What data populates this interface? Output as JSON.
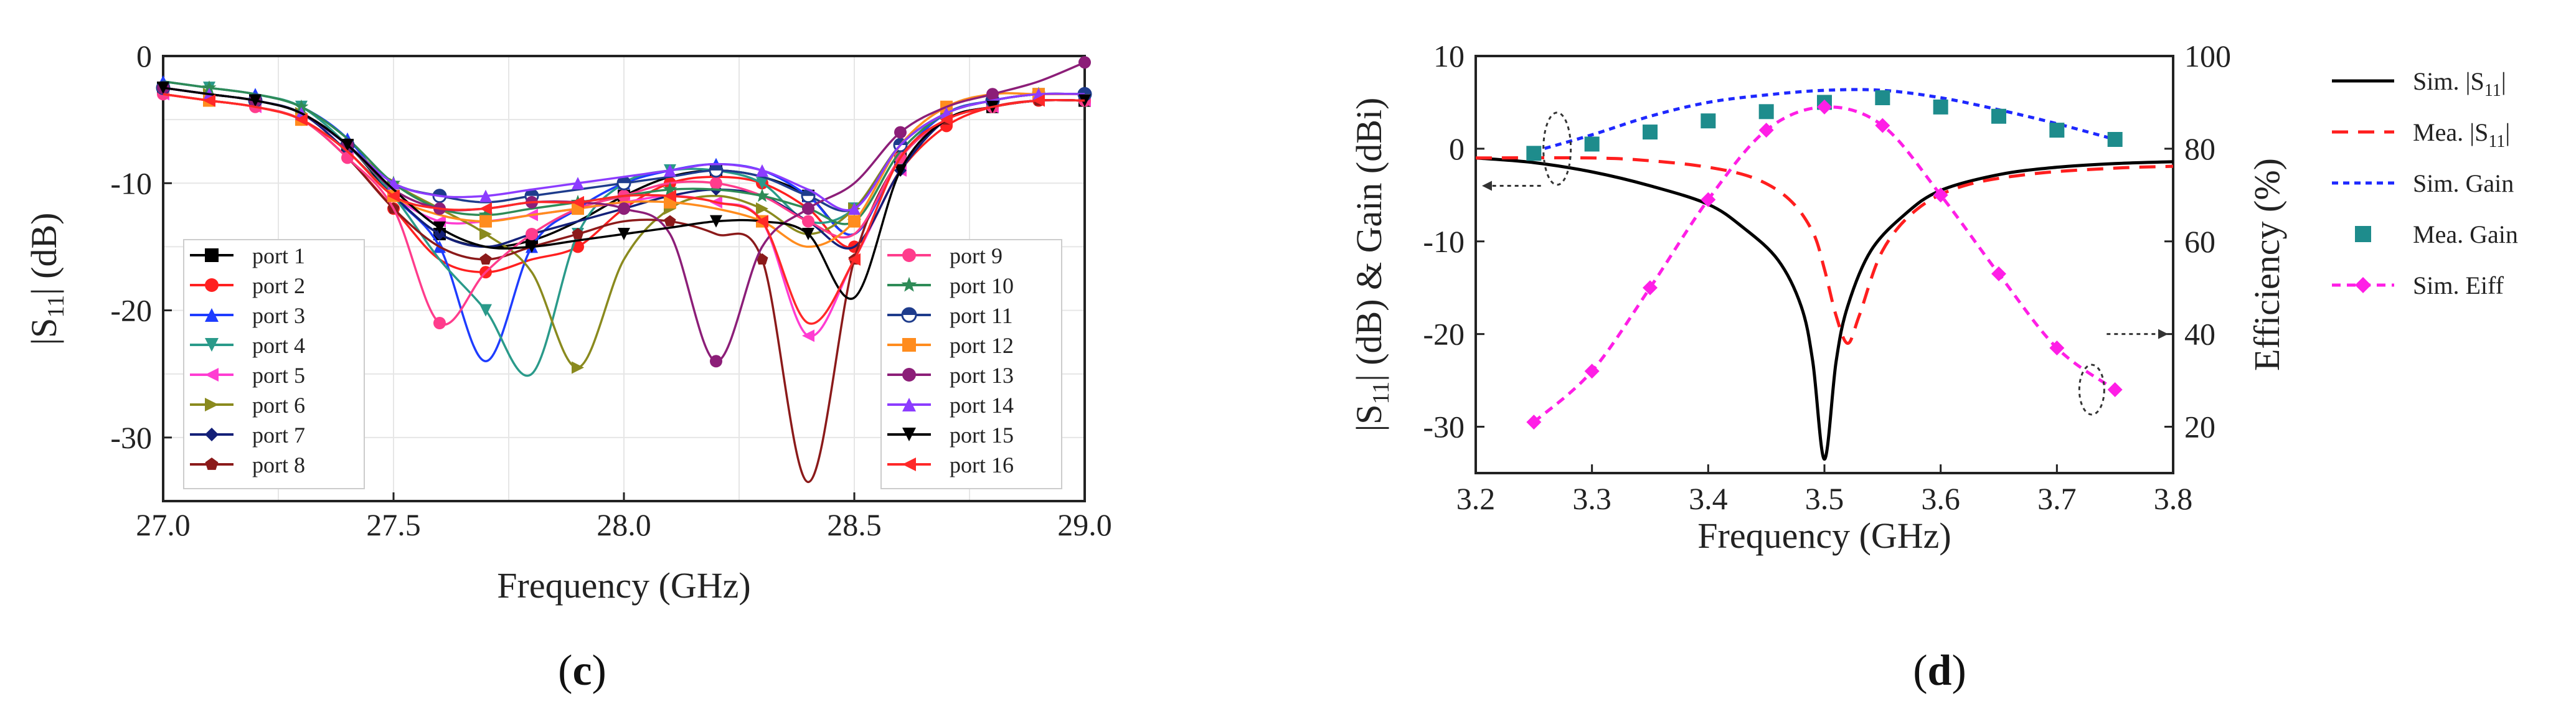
{
  "chart_data": [
    {
      "type": "line",
      "panel_label": "(c)",
      "panel_label_parts": {
        "open": "(",
        "letter": "c",
        "close": ")"
      },
      "title": "",
      "xlabel": "Frequency (GHz)",
      "ylabel": "|S11| (dB)",
      "ylabel_parts": {
        "main": "|S",
        "sub": "11",
        "tail": "| (dB)"
      },
      "xlim": [
        27.0,
        29.0
      ],
      "ylim": [
        -35,
        0
      ],
      "xticks": [
        "27.0",
        "27.5",
        "28.0",
        "28.5",
        "29.0"
      ],
      "yticks": [
        "0",
        "-10",
        "-20",
        "-30"
      ],
      "grid": true,
      "legend_position": "inside, two columns (left and right)",
      "x": [
        27.0,
        27.1,
        27.2,
        27.3,
        27.4,
        27.5,
        27.6,
        27.7,
        27.8,
        27.9,
        28.0,
        28.1,
        28.2,
        28.3,
        28.4,
        28.5,
        28.6,
        28.7,
        28.8,
        28.9,
        29.0
      ],
      "series": [
        {
          "name": "port 1",
          "color": "#000000",
          "marker": "square",
          "values": [
            -2.5,
            -3,
            -3.5,
            -4.5,
            -7,
            -11,
            -14,
            -15,
            -14.5,
            -13,
            -11,
            -9.5,
            -9,
            -9.5,
            -11,
            -14,
            -8,
            -5,
            -4,
            -3.5,
            -3.5
          ]
        },
        {
          "name": "port 2",
          "color": "#ff2020",
          "marker": "circle",
          "values": [
            -3,
            -3.5,
            -4,
            -5,
            -8,
            -12,
            -16,
            -17,
            -16,
            -15,
            -12,
            -10,
            -9.5,
            -10,
            -12,
            -15,
            -9,
            -5.5,
            -4,
            -3.5,
            -3.5
          ]
        },
        {
          "name": "port 3",
          "color": "#1e3cff",
          "marker": "triangle-up",
          "values": [
            -2,
            -2.5,
            -3,
            -4,
            -6.5,
            -11,
            -15,
            -24,
            -15,
            -12,
            -10,
            -9,
            -8.5,
            -9,
            -11,
            -14,
            -8,
            -4.5,
            -3.5,
            -3,
            -3
          ]
        },
        {
          "name": "port 4",
          "color": "#2a9a8a",
          "marker": "triangle-down",
          "values": [
            -2,
            -2.5,
            -3,
            -4,
            -7,
            -11,
            -16,
            -20,
            -25,
            -14,
            -10,
            -9,
            -9,
            -10,
            -13,
            -12,
            -7,
            -4.5,
            -3.5,
            -3,
            -3
          ]
        },
        {
          "name": "port 5",
          "color": "#ff3cd2",
          "marker": "triangle-left",
          "values": [
            -3,
            -3.5,
            -4,
            -5,
            -7.5,
            -11,
            -13,
            -13,
            -12.5,
            -12,
            -11.5,
            -11,
            -11.5,
            -13,
            -22,
            -16,
            -9,
            -5,
            -4,
            -3.5,
            -3.5
          ]
        },
        {
          "name": "port 6",
          "color": "#8a8a1e",
          "marker": "triangle-right",
          "values": [
            -2.5,
            -3,
            -3.5,
            -4.5,
            -7,
            -10,
            -12,
            -14,
            -17,
            -24.5,
            -16,
            -12,
            -11,
            -12,
            -14,
            -12,
            -7,
            -4.5,
            -3.5,
            -3,
            -3
          ]
        },
        {
          "name": "port 7",
          "color": "#142078",
          "marker": "diamond",
          "values": [
            -2.5,
            -3,
            -3.5,
            -4.5,
            -7.5,
            -11,
            -14,
            -15,
            -14,
            -13,
            -12,
            -11,
            -10.5,
            -11,
            -13,
            -15,
            -9,
            -5,
            -4,
            -3.5,
            -3.5
          ]
        },
        {
          "name": "port 8",
          "color": "#8b1a1a",
          "marker": "pentagon",
          "values": [
            -3,
            -3.5,
            -4,
            -5,
            -8,
            -12,
            -15,
            -16,
            -15,
            -14,
            -13,
            -13,
            -14,
            -16,
            -33.5,
            -16,
            -8,
            -5,
            -4,
            -3.5,
            -3.5
          ]
        },
        {
          "name": "port 9",
          "color": "#ff3c8c",
          "marker": "circle",
          "values": [
            -3,
            -3.5,
            -4,
            -5,
            -8,
            -12,
            -21,
            -17,
            -14,
            -12,
            -11,
            -10,
            -10,
            -11,
            -13,
            -14,
            -8,
            -5,
            -4,
            -3.5,
            -3.5
          ]
        },
        {
          "name": "port 10",
          "color": "#2e8b57",
          "marker": "star",
          "values": [
            -2,
            -2.5,
            -3,
            -4,
            -6.5,
            -10,
            -12,
            -12.5,
            -12,
            -11.5,
            -11,
            -10.5,
            -10.5,
            -11,
            -12,
            -13,
            -7.5,
            -4.5,
            -3.5,
            -3,
            -3
          ]
        },
        {
          "name": "port 11",
          "color": "#1e3c8c",
          "marker": "circle-half",
          "values": [
            -2.5,
            -3,
            -3.5,
            -4.5,
            -7,
            -10,
            -11,
            -11.5,
            -11,
            -10.5,
            -10,
            -9.5,
            -9,
            -9.5,
            -11,
            -12,
            -7,
            -4.5,
            -3.5,
            -3,
            -3
          ]
        },
        {
          "name": "port 12",
          "color": "#ff8c1e",
          "marker": "square",
          "values": [
            -3,
            -3.5,
            -4,
            -5,
            -7.5,
            -11,
            -12.5,
            -13,
            -12.5,
            -12,
            -11.5,
            -11.5,
            -12,
            -13,
            -15,
            -13,
            -7,
            -4,
            -3,
            -3,
            -3
          ]
        },
        {
          "name": "port 13",
          "color": "#8c1e78",
          "marker": "circle",
          "values": [
            -2.5,
            -3,
            -3.5,
            -4.5,
            -7,
            -10.5,
            -12,
            -12,
            -11.5,
            -11.5,
            -12,
            -14,
            -24,
            -15,
            -12,
            -10,
            -6,
            -4,
            -3,
            -2,
            -0.5
          ]
        },
        {
          "name": "port 14",
          "color": "#8c3cff",
          "marker": "triangle-up",
          "values": [
            -2.5,
            -3,
            -3.5,
            -4.5,
            -7,
            -10,
            -11,
            -11,
            -10.5,
            -10,
            -9.5,
            -9,
            -8.5,
            -9,
            -10.5,
            -12,
            -7,
            -4.5,
            -3.5,
            -3,
            -3
          ]
        },
        {
          "name": "port 15",
          "color": "#000000",
          "marker": "triangle-down",
          "values": [
            -2.5,
            -3,
            -3.5,
            -4.5,
            -7,
            -10.5,
            -13.5,
            -15,
            -15,
            -14.5,
            -14,
            -13.5,
            -13,
            -13,
            -14,
            -19,
            -9,
            -5,
            -4,
            -3.5,
            -3.5
          ]
        },
        {
          "name": "port 16",
          "color": "#ff2828",
          "marker": "triangle-left",
          "values": [
            -3,
            -3.5,
            -4,
            -5,
            -7.5,
            -11,
            -12,
            -12,
            -11.5,
            -11.5,
            -11,
            -11,
            -11.5,
            -13,
            -21,
            -16,
            -8,
            -5,
            -4,
            -3.5,
            -3.5
          ]
        }
      ]
    },
    {
      "type": "line",
      "panel_label": "(d)",
      "panel_label_parts": {
        "open": "(",
        "letter": "d",
        "close": ")"
      },
      "title": "",
      "xlabel": "Frequency (GHz)",
      "ylabel_left": "|S11| (dB) & Gain (dBi)",
      "ylabel_left_parts": {
        "main": "|S",
        "sub": "11",
        "tail": "| (dB) & Gain (dBi)"
      },
      "ylabel_right": "Efficiency (%)",
      "xlim": [
        3.2,
        3.8
      ],
      "ylim_left": [
        -35,
        10
      ],
      "ylim_right": [
        10,
        100
      ],
      "xticks": [
        "3.2",
        "3.3",
        "3.4",
        "3.5",
        "3.6",
        "3.7",
        "3.8"
      ],
      "yticks_left": [
        "10",
        "0",
        "-10",
        "-20",
        "-30"
      ],
      "yticks_right": [
        "100",
        "80",
        "60",
        "40",
        "20"
      ],
      "grid": false,
      "legend_position": "outside right",
      "series": [
        {
          "name": "Sim. |S11|",
          "name_parts": {
            "main": "Sim. |S",
            "sub": "11",
            "tail": "|"
          },
          "axis": "left",
          "color": "#000000",
          "style": "solid",
          "x": [
            3.2,
            3.25,
            3.3,
            3.35,
            3.4,
            3.43,
            3.46,
            3.48,
            3.49,
            3.5,
            3.51,
            3.52,
            3.54,
            3.57,
            3.6,
            3.65,
            3.7,
            3.75,
            3.8
          ],
          "values": [
            -1,
            -1.5,
            -2.5,
            -4,
            -6,
            -8.5,
            -12,
            -17,
            -23,
            -33.5,
            -23,
            -17,
            -11,
            -7,
            -4.5,
            -2.8,
            -2,
            -1.6,
            -1.4
          ]
        },
        {
          "name": "Mea. |S11|",
          "name_parts": {
            "main": "Mea. |S",
            "sub": "11",
            "tail": "|"
          },
          "axis": "left",
          "color": "#ff1e1e",
          "style": "dashed",
          "x": [
            3.2,
            3.3,
            3.35,
            3.4,
            3.44,
            3.47,
            3.49,
            3.5,
            3.51,
            3.52,
            3.53,
            3.55,
            3.58,
            3.62,
            3.68,
            3.75,
            3.8
          ],
          "values": [
            -1,
            -1,
            -1.3,
            -2,
            -3.2,
            -5.5,
            -9,
            -13,
            -18,
            -21,
            -18,
            -11,
            -6.5,
            -4,
            -2.7,
            -2.1,
            -1.9
          ]
        },
        {
          "name": "Sim. Gain",
          "axis": "left",
          "color": "#1e28ff",
          "style": "dotted",
          "x": [
            3.25,
            3.3,
            3.35,
            3.4,
            3.45,
            3.5,
            3.55,
            3.6,
            3.65,
            3.7,
            3.75
          ],
          "values": [
            -0.3,
            1.5,
            3.5,
            5,
            5.8,
            6.3,
            6.3,
            5.5,
            4.2,
            2.7,
            1
          ]
        },
        {
          "name": "Mea. Gain",
          "axis": "left",
          "color": "#1e8c8c",
          "style": "markers",
          "marker": "square",
          "x": [
            3.25,
            3.3,
            3.35,
            3.4,
            3.45,
            3.5,
            3.55,
            3.6,
            3.65,
            3.7,
            3.75
          ],
          "values": [
            -0.5,
            0.5,
            1.8,
            3,
            4,
            5,
            5.5,
            4.5,
            3.5,
            2,
            1
          ]
        },
        {
          "name": "Sim. Eiff",
          "axis": "right",
          "color": "#ff1ee6",
          "style": "dashed",
          "marker": "diamond",
          "x": [
            3.25,
            3.3,
            3.35,
            3.4,
            3.45,
            3.5,
            3.55,
            3.6,
            3.65,
            3.7,
            3.75
          ],
          "values": [
            21,
            32,
            50,
            69,
            84,
            89,
            85,
            70,
            53,
            37,
            28
          ]
        }
      ]
    }
  ]
}
